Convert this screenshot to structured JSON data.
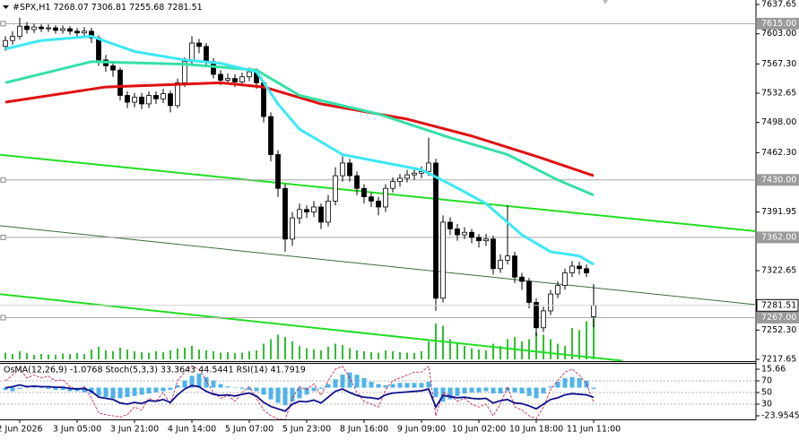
{
  "chart_data": [
    {
      "type": "candlestick",
      "title": "#SPX,H1  7268.07 7306.81 7255.68 7281.51",
      "categories": [
        null,
        null,
        "2 Jun 2026",
        null,
        null,
        null,
        null,
        null,
        null,
        null,
        "3 Jun 05:00",
        null,
        null,
        null,
        null,
        null,
        null,
        null,
        "3 Jun 21:00",
        null,
        null,
        null,
        null,
        null,
        null,
        null,
        "4 Jun 14:00",
        null,
        null,
        null,
        null,
        null,
        null,
        null,
        "5 Jun 07:00",
        null,
        null,
        null,
        null,
        null,
        null,
        null,
        "5 Jun 23:00",
        null,
        null,
        null,
        null,
        null,
        null,
        null,
        "8 Jun 16:00",
        null,
        null,
        null,
        null,
        null,
        null,
        null,
        "9 Jun 09:00",
        null,
        null,
        null,
        null,
        null,
        null,
        null,
        "10 Jun 02:00",
        null,
        null,
        null,
        null,
        null,
        null,
        null,
        "10 Jun 18:00",
        null,
        null,
        null,
        null,
        null,
        null,
        null,
        "11 Jun 11:00"
      ],
      "open": [
        7588,
        7595,
        7600,
        7612,
        7608,
        7611,
        7609,
        7610,
        7607,
        7609,
        7606,
        7604,
        7606,
        7598,
        7572,
        7565,
        7560,
        7530,
        7522,
        7528,
        7520,
        7530,
        7526,
        7532,
        7518,
        7545,
        7570,
        7592,
        7588,
        7570,
        7555,
        7548,
        7550,
        7546,
        7552,
        7558,
        7545,
        7505,
        7460,
        7420,
        7360,
        7385,
        7395,
        7392,
        7398,
        7380,
        7405,
        7435,
        7450,
        7435,
        7420,
        7410,
        7405,
        7398,
        7420,
        7428,
        7432,
        7436,
        7438,
        7440,
        7450,
        7290,
        7380,
        7372,
        7365,
        7368,
        7362,
        7358,
        7360,
        7325,
        7335,
        7340,
        7315,
        7310,
        7285,
        7255,
        7275,
        7295,
        7305,
        7320,
        7328,
        7325,
        7268.07
      ],
      "high": [
        7600,
        7606,
        7622,
        7617,
        7615,
        7614,
        7614,
        7613,
        7613,
        7612,
        7610,
        7611,
        7610,
        7601,
        7578,
        7570,
        7563,
        7535,
        7533,
        7533,
        7535,
        7535,
        7538,
        7536,
        7550,
        7575,
        7600,
        7597,
        7592,
        7574,
        7560,
        7556,
        7555,
        7557,
        7563,
        7562,
        7548,
        7510,
        7465,
        7425,
        7392,
        7402,
        7400,
        7405,
        7402,
        7412,
        7445,
        7458,
        7455,
        7440,
        7425,
        7415,
        7410,
        7425,
        7433,
        7437,
        7442,
        7444,
        7446,
        7480,
        7455,
        7388,
        7386,
        7378,
        7374,
        7372,
        7366,
        7366,
        7364,
        7342,
        7400,
        7345,
        7320,
        7314,
        7290,
        7280,
        7300,
        7310,
        7325,
        7334,
        7333,
        7330,
        7306.81
      ],
      "low": [
        7583,
        7590,
        7596,
        7603,
        7604,
        7605,
        7605,
        7603,
        7603,
        7602,
        7600,
        7600,
        7592,
        7565,
        7558,
        7552,
        7524,
        7515,
        7516,
        7514,
        7515,
        7520,
        7521,
        7510,
        7515,
        7540,
        7566,
        7580,
        7565,
        7550,
        7542,
        7543,
        7540,
        7541,
        7547,
        7538,
        7498,
        7452,
        7410,
        7345,
        7352,
        7378,
        7385,
        7386,
        7372,
        7375,
        7400,
        7428,
        7428,
        7412,
        7402,
        7398,
        7388,
        7392,
        7415,
        7422,
        7427,
        7430,
        7432,
        7435,
        7275,
        7285,
        7365,
        7358,
        7360,
        7355,
        7350,
        7352,
        7318,
        7320,
        7330,
        7308,
        7300,
        7278,
        7245,
        7250,
        7270,
        7290,
        7300,
        7315,
        7318,
        7315,
        7255.68
      ],
      "close": [
        7595,
        7600,
        7612,
        7608,
        7611,
        7609,
        7610,
        7607,
        7609,
        7606,
        7604,
        7606,
        7598,
        7572,
        7565,
        7560,
        7530,
        7522,
        7528,
        7520,
        7530,
        7526,
        7532,
        7518,
        7545,
        7570,
        7592,
        7588,
        7570,
        7555,
        7548,
        7550,
        7546,
        7552,
        7558,
        7545,
        7505,
        7460,
        7420,
        7360,
        7385,
        7395,
        7392,
        7398,
        7380,
        7405,
        7435,
        7450,
        7435,
        7420,
        7410,
        7405,
        7398,
        7420,
        7428,
        7432,
        7436,
        7438,
        7440,
        7450,
        7290,
        7380,
        7372,
        7365,
        7368,
        7362,
        7358,
        7360,
        7325,
        7335,
        7340,
        7315,
        7310,
        7285,
        7255,
        7275,
        7295,
        7305,
        7320,
        7328,
        7325,
        7320,
        7281.51
      ],
      "up_color": "#ffffff",
      "down_color": "#000000",
      "volume": [
        15,
        12,
        18,
        14,
        10,
        12,
        11,
        10,
        13,
        12,
        14,
        12,
        22,
        28,
        20,
        18,
        26,
        22,
        18,
        16,
        15,
        18,
        16,
        20,
        24,
        26,
        30,
        22,
        20,
        18,
        15,
        16,
        14,
        15,
        18,
        20,
        35,
        45,
        55,
        50,
        40,
        30,
        25,
        22,
        20,
        28,
        35,
        32,
        25,
        20,
        18,
        16,
        15,
        20,
        18,
        16,
        15,
        14,
        18,
        40,
        80,
        75,
        45,
        35,
        30,
        25,
        22,
        20,
        35,
        30,
        45,
        50,
        40,
        45,
        60,
        55,
        45,
        35,
        30,
        70,
        65,
        85,
        90
      ],
      "volume_color": "#2fbf2f",
      "series": [
        {
          "color": "#e01010",
          "x": [
            0,
            14,
            30,
            36,
            44,
            56,
            65,
            74,
            82
          ],
          "values": [
            7522,
            7540,
            7545,
            7540,
            7520,
            7502,
            7482,
            7458,
            7435
          ]
        },
        {
          "color": "#34e0a8",
          "x": [
            0,
            12,
            25,
            35,
            41,
            52,
            62,
            70,
            77,
            82
          ],
          "values": [
            7545,
            7570,
            7567,
            7560,
            7530,
            7508,
            7480,
            7460,
            7430,
            7412
          ]
        },
        {
          "color": "#3ce8f4",
          "x": [
            0,
            5,
            12,
            18,
            25,
            30,
            35,
            38,
            41,
            47,
            58,
            62,
            67,
            72,
            76,
            80,
            82
          ],
          "values": [
            7585,
            7595,
            7600,
            7582,
            7572,
            7568,
            7558,
            7520,
            7490,
            7460,
            7442,
            7425,
            7402,
            7365,
            7345,
            7340,
            7330
          ]
        }
      ],
      "lines": [
        {
          "color": "#22dd22",
          "x": [
            -1,
            105
          ],
          "values": [
            7460,
            7369
          ]
        },
        {
          "color": "#3b6b3b",
          "x": [
            -1,
            105
          ],
          "values": [
            7376,
            7282
          ]
        },
        {
          "color": "#22dd22",
          "x": [
            -1,
            86
          ],
          "values": [
            7295,
            7216
          ]
        }
      ],
      "levels": [
        {
          "value": 7615,
          "label": "7615.00"
        },
        {
          "value": 7430,
          "label": "7430.00"
        },
        {
          "value": 7362,
          "label": "7362.00"
        },
        {
          "value": 7267,
          "label": "7267.00"
        }
      ],
      "last": 7281.51,
      "ylim": [
        7217.65,
        7637.65
      ],
      "yticks": [
        7637.65,
        {
          "value": 7603,
          "label": "7603.00"
        },
        {
          "value": 7567.3,
          "label": "7567.30"
        },
        7532.65,
        {
          "value": 7498,
          "label": "7498.00"
        },
        {
          "value": 7462.3,
          "label": "7462.30"
        },
        7391.95,
        7322.65,
        {
          "value": 7252.3,
          "label": "7252.30"
        },
        7217.65
      ],
      "grid": false
    },
    {
      "type": "oscillator",
      "title": "OsMA(12,26,9) -1.0768 Stoch(5,3,3) 33.3643 44.5441 RSI(14) 41.7919",
      "series": [
        {
          "color": "#4fb3ea",
          "kind": "histogram",
          "values": [
            -2,
            -3,
            -1,
            0,
            1,
            0,
            -1,
            -2,
            -2,
            -3,
            -3,
            -4,
            -5,
            -7,
            -8,
            -9,
            -9,
            -8,
            -7,
            -6,
            -5,
            -4,
            -3,
            -2,
            2,
            6,
            10,
            12,
            9,
            6,
            3,
            1,
            0,
            -1,
            -2,
            -3,
            -6,
            -10,
            -13,
            -15,
            -12,
            -9,
            -6,
            -3,
            -1,
            3,
            7,
            11,
            13,
            11,
            8,
            5,
            3,
            2,
            3,
            4,
            4,
            4,
            4,
            5,
            -8,
            -12,
            -10,
            -7,
            -5,
            -4,
            -4,
            -3,
            -5,
            -5,
            -3,
            -4,
            -5,
            -7,
            -9,
            -5,
            1,
            5,
            8,
            9,
            8,
            6,
            -1.0768
          ]
        },
        {
          "color": "#c01040",
          "axis": "y2",
          "kind": "dashed",
          "values": [
            70,
            80,
            90,
            75,
            80,
            75,
            78,
            70,
            72,
            60,
            55,
            60,
            40,
            15,
            12,
            10,
            8,
            12,
            25,
            20,
            40,
            35,
            50,
            30,
            70,
            85,
            95,
            90,
            70,
            50,
            40,
            45,
            35,
            50,
            60,
            40,
            20,
            10,
            5,
            3,
            40,
            60,
            55,
            65,
            45,
            70,
            90,
            95,
            75,
            50,
            35,
            30,
            25,
            55,
            70,
            75,
            80,
            85,
            85,
            95,
            10,
            50,
            45,
            35,
            40,
            30,
            25,
            30,
            10,
            30,
            60,
            25,
            20,
            10,
            5,
            25,
            55,
            70,
            85,
            90,
            80,
            65,
            33.3643
          ]
        },
        {
          "color": "#10108c",
          "axis": "y2",
          "kind": "line",
          "values": [
            58,
            60,
            63,
            60,
            61,
            60,
            60,
            59,
            59,
            57,
            56,
            57,
            52,
            42,
            40,
            38,
            32,
            30,
            33,
            31,
            36,
            35,
            38,
            33,
            46,
            56,
            62,
            60,
            52,
            47,
            45,
            46,
            44,
            47,
            49,
            44,
            33,
            26,
            22,
            18,
            30,
            35,
            34,
            37,
            32,
            42,
            52,
            56,
            50,
            45,
            42,
            41,
            39,
            46,
            49,
            50,
            51,
            52,
            53,
            56,
            25,
            45,
            43,
            41,
            42,
            40,
            39,
            40,
            32,
            36,
            38,
            32,
            31,
            27,
            22,
            30,
            38,
            41,
            46,
            48,
            47,
            46,
            41.7919
          ]
        }
      ],
      "ylim": [
        -23.9545,
        15.66
      ],
      "yticks": [
        15.66,
        -23.9545
      ],
      "y2lim": [
        0,
        100
      ],
      "y2ticks": [
        70,
        50,
        30
      ]
    }
  ]
}
